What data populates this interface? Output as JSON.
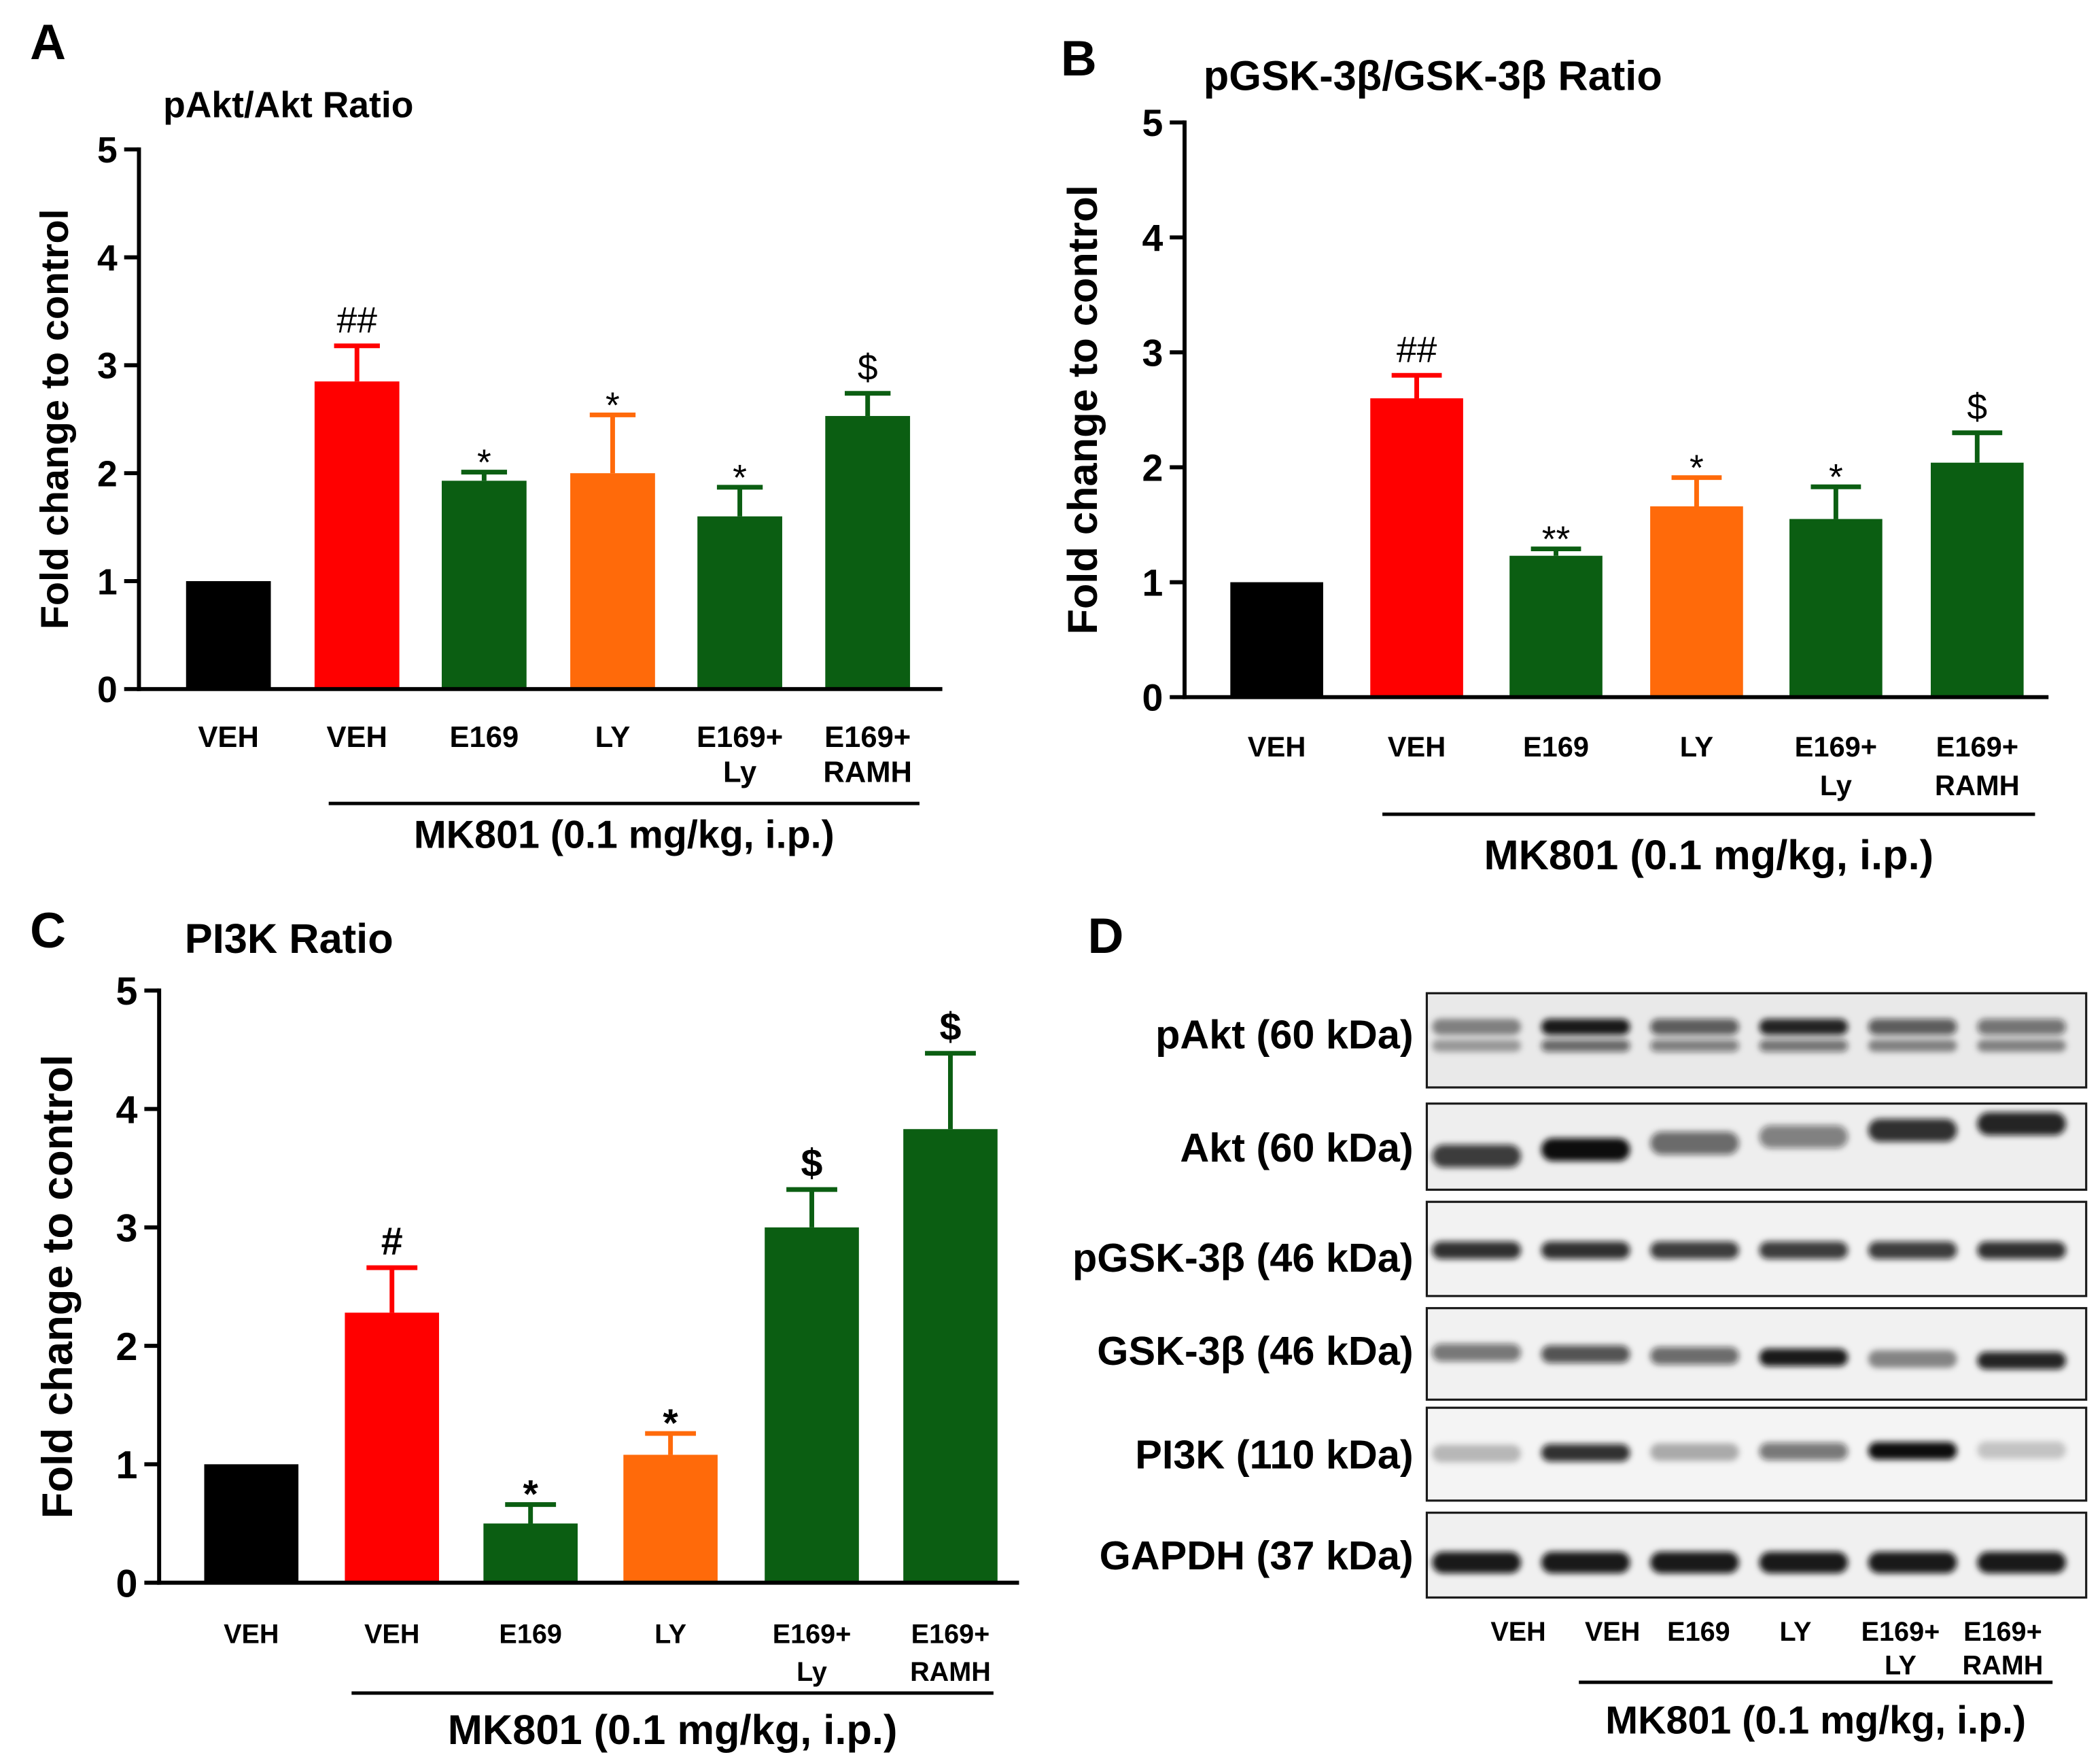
{
  "chart_data": [
    {
      "panel_letter": "A",
      "type": "bar",
      "title": "pAkt/Akt Ratio",
      "ylabel": "Fold change to control",
      "ylim": [
        0,
        5
      ],
      "yticks": [
        0,
        1,
        2,
        3,
        4,
        5
      ],
      "categories": [
        [
          "VEH"
        ],
        [
          "VEH"
        ],
        [
          "E169"
        ],
        [
          "LY"
        ],
        [
          "E169+",
          "Ly"
        ],
        [
          "E169+",
          "RAMH"
        ]
      ],
      "values": [
        1.0,
        2.85,
        1.93,
        2.0,
        1.6,
        2.53
      ],
      "errors": [
        0,
        0.33,
        0.08,
        0.54,
        0.27,
        0.21
      ],
      "annotations": [
        null,
        "##",
        "*",
        "*",
        "*",
        "$"
      ],
      "bar_colors": [
        "#000000",
        "#ff0000",
        "#0b5e12",
        "#ff6a0a",
        "#0b5e12",
        "#0b5e12"
      ],
      "group_label": "MK801 (0.1 mg/kg, i.p.)",
      "group_span": [
        1,
        5
      ]
    },
    {
      "panel_letter": "B",
      "type": "bar",
      "title": "pGSK-3β/GSK-3β Ratio",
      "ylabel": "Fold change to control",
      "ylim": [
        0,
        5
      ],
      "yticks": [
        0,
        1,
        2,
        3,
        4,
        5
      ],
      "categories": [
        [
          "VEH"
        ],
        [
          "VEH"
        ],
        [
          "E169"
        ],
        [
          "LY"
        ],
        [
          "E169+",
          "Ly"
        ],
        [
          "E169+",
          "RAMH"
        ]
      ],
      "values": [
        1.0,
        2.6,
        1.23,
        1.66,
        1.55,
        2.04
      ],
      "errors": [
        0,
        0.2,
        0.06,
        0.25,
        0.28,
        0.26
      ],
      "annotations": [
        null,
        "##",
        "**",
        "*",
        "*",
        "$"
      ],
      "bar_colors": [
        "#000000",
        "#ff0000",
        "#0b5e12",
        "#ff6a0a",
        "#0b5e12",
        "#0b5e12"
      ],
      "group_label": "MK801 (0.1 mg/kg, i.p.)",
      "group_span": [
        1,
        5
      ]
    },
    {
      "panel_letter": "C",
      "type": "bar",
      "title": "PI3K Ratio",
      "ylabel": "Fold change to control",
      "ylim": [
        0,
        5
      ],
      "yticks": [
        0,
        1,
        2,
        3,
        4,
        5
      ],
      "categories": [
        [
          "VEH"
        ],
        [
          "VEH"
        ],
        [
          "E169"
        ],
        [
          "LY"
        ],
        [
          "E169+",
          "Ly"
        ],
        [
          "E169+",
          "RAMH"
        ]
      ],
      "values": [
        1.0,
        2.28,
        0.5,
        1.08,
        3.0,
        3.83
      ],
      "errors": [
        0,
        0.38,
        0.16,
        0.18,
        0.32,
        0.64
      ],
      "annotations": [
        null,
        "#",
        "*",
        "*",
        "$",
        "$"
      ],
      "bar_colors": [
        "#000000",
        "#ff0000",
        "#0b5e12",
        "#ff6a0a",
        "#0b5e12",
        "#0b5e12"
      ],
      "group_label": "MK801 (0.1 mg/kg, i.p.)",
      "group_span": [
        1,
        5
      ]
    }
  ],
  "blot": {
    "panel_letter": "D",
    "rows": [
      {
        "label": "pAkt (60 kDa)",
        "band_intensity": [
          [
            0.45,
            0.95,
            0.65,
            0.9,
            0.65,
            0.55
          ],
          [
            0.35,
            0.6,
            0.5,
            0.55,
            0.45,
            0.45
          ]
        ]
      },
      {
        "label": "Akt (60 kDa)",
        "band_intensity": [
          [
            0.8,
            1.0,
            0.6,
            0.5,
            0.85,
            0.9
          ]
        ]
      },
      {
        "label": "pGSK-3β (46 kDa)",
        "band_intensity": [
          [
            0.85,
            0.85,
            0.8,
            0.8,
            0.8,
            0.85
          ]
        ]
      },
      {
        "label": "GSK-3β (46 kDa)",
        "band_intensity": [
          [
            0.55,
            0.7,
            0.6,
            0.95,
            0.45,
            0.9
          ]
        ]
      },
      {
        "label": "PI3K (110 kDa)",
        "band_intensity": [
          [
            0.25,
            0.85,
            0.3,
            0.55,
            1.0,
            0.2
          ]
        ]
      },
      {
        "label": "GAPDH (37 kDa)",
        "band_intensity": [
          [
            0.95,
            0.95,
            0.95,
            0.95,
            0.95,
            0.95
          ]
        ]
      }
    ],
    "lanes": [
      [
        "VEH"
      ],
      [
        "VEH"
      ],
      [
        "E169"
      ],
      [
        "LY"
      ],
      [
        "E169+",
        "LY"
      ],
      [
        "E169+",
        "RAMH"
      ]
    ],
    "group_label": "MK801 (0.1 mg/kg, i.p.)",
    "group_span": [
      1,
      5
    ]
  }
}
